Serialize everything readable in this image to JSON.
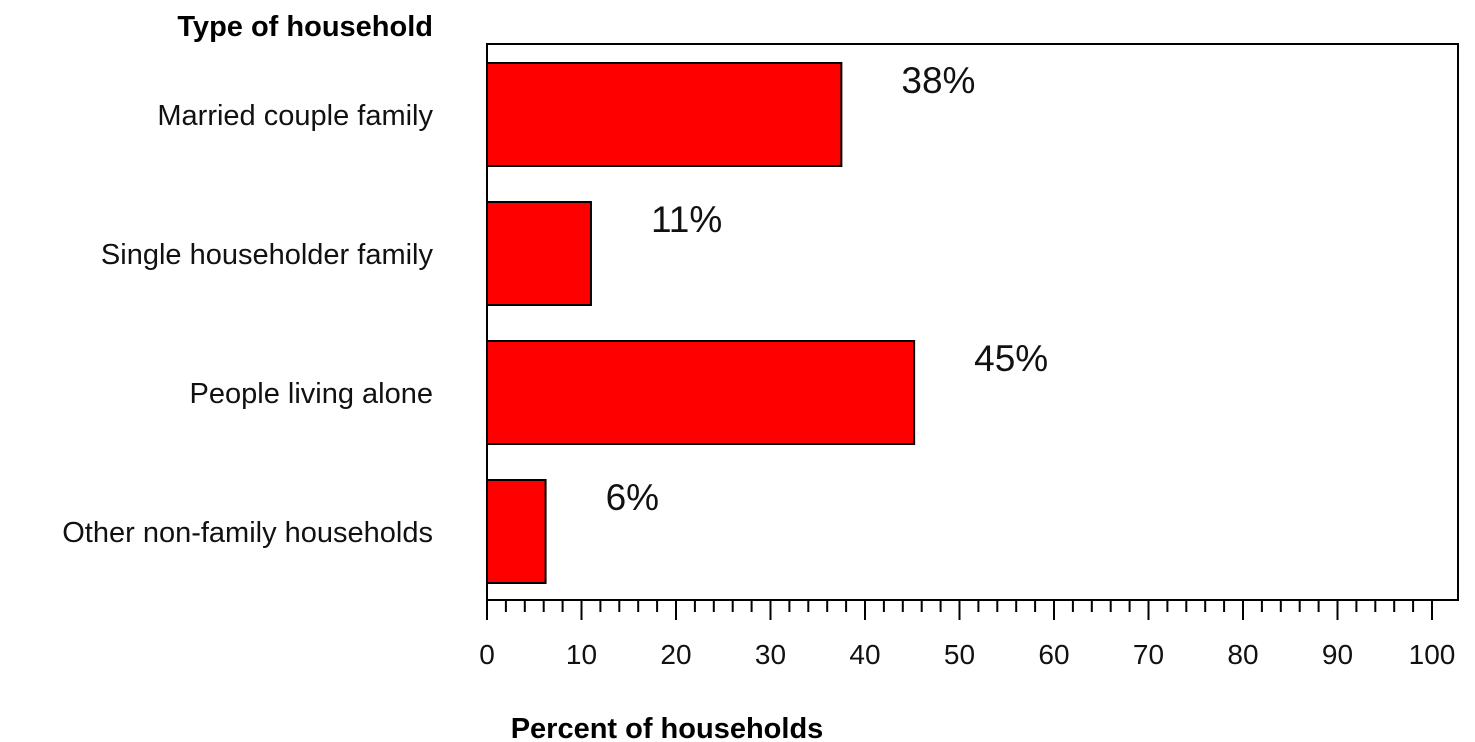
{
  "chart_data": {
    "type": "bar",
    "orientation": "horizontal",
    "ylabel": "Type of household",
    "xlabel": "Percent of households",
    "categories": [
      "Married couple family",
      "Single householder family",
      "People living alone",
      "Other non-family households"
    ],
    "values": [
      37.5,
      11,
      45.2,
      6.2
    ],
    "data_labels": [
      "38%",
      "11%",
      "45%",
      "6%"
    ],
    "xlim": [
      0,
      100
    ],
    "xticks": [
      0,
      10,
      20,
      30,
      40,
      50,
      60,
      70,
      80,
      90,
      100
    ],
    "xticks_labels": [
      "0",
      "10",
      "20",
      "30",
      "40",
      "50",
      "60",
      "70",
      "80",
      "90",
      "100"
    ],
    "minor_tick_step": 2,
    "grid": false,
    "legend": "none",
    "bar_color": "#ff0000",
    "bar_edge_color": "#000000"
  }
}
